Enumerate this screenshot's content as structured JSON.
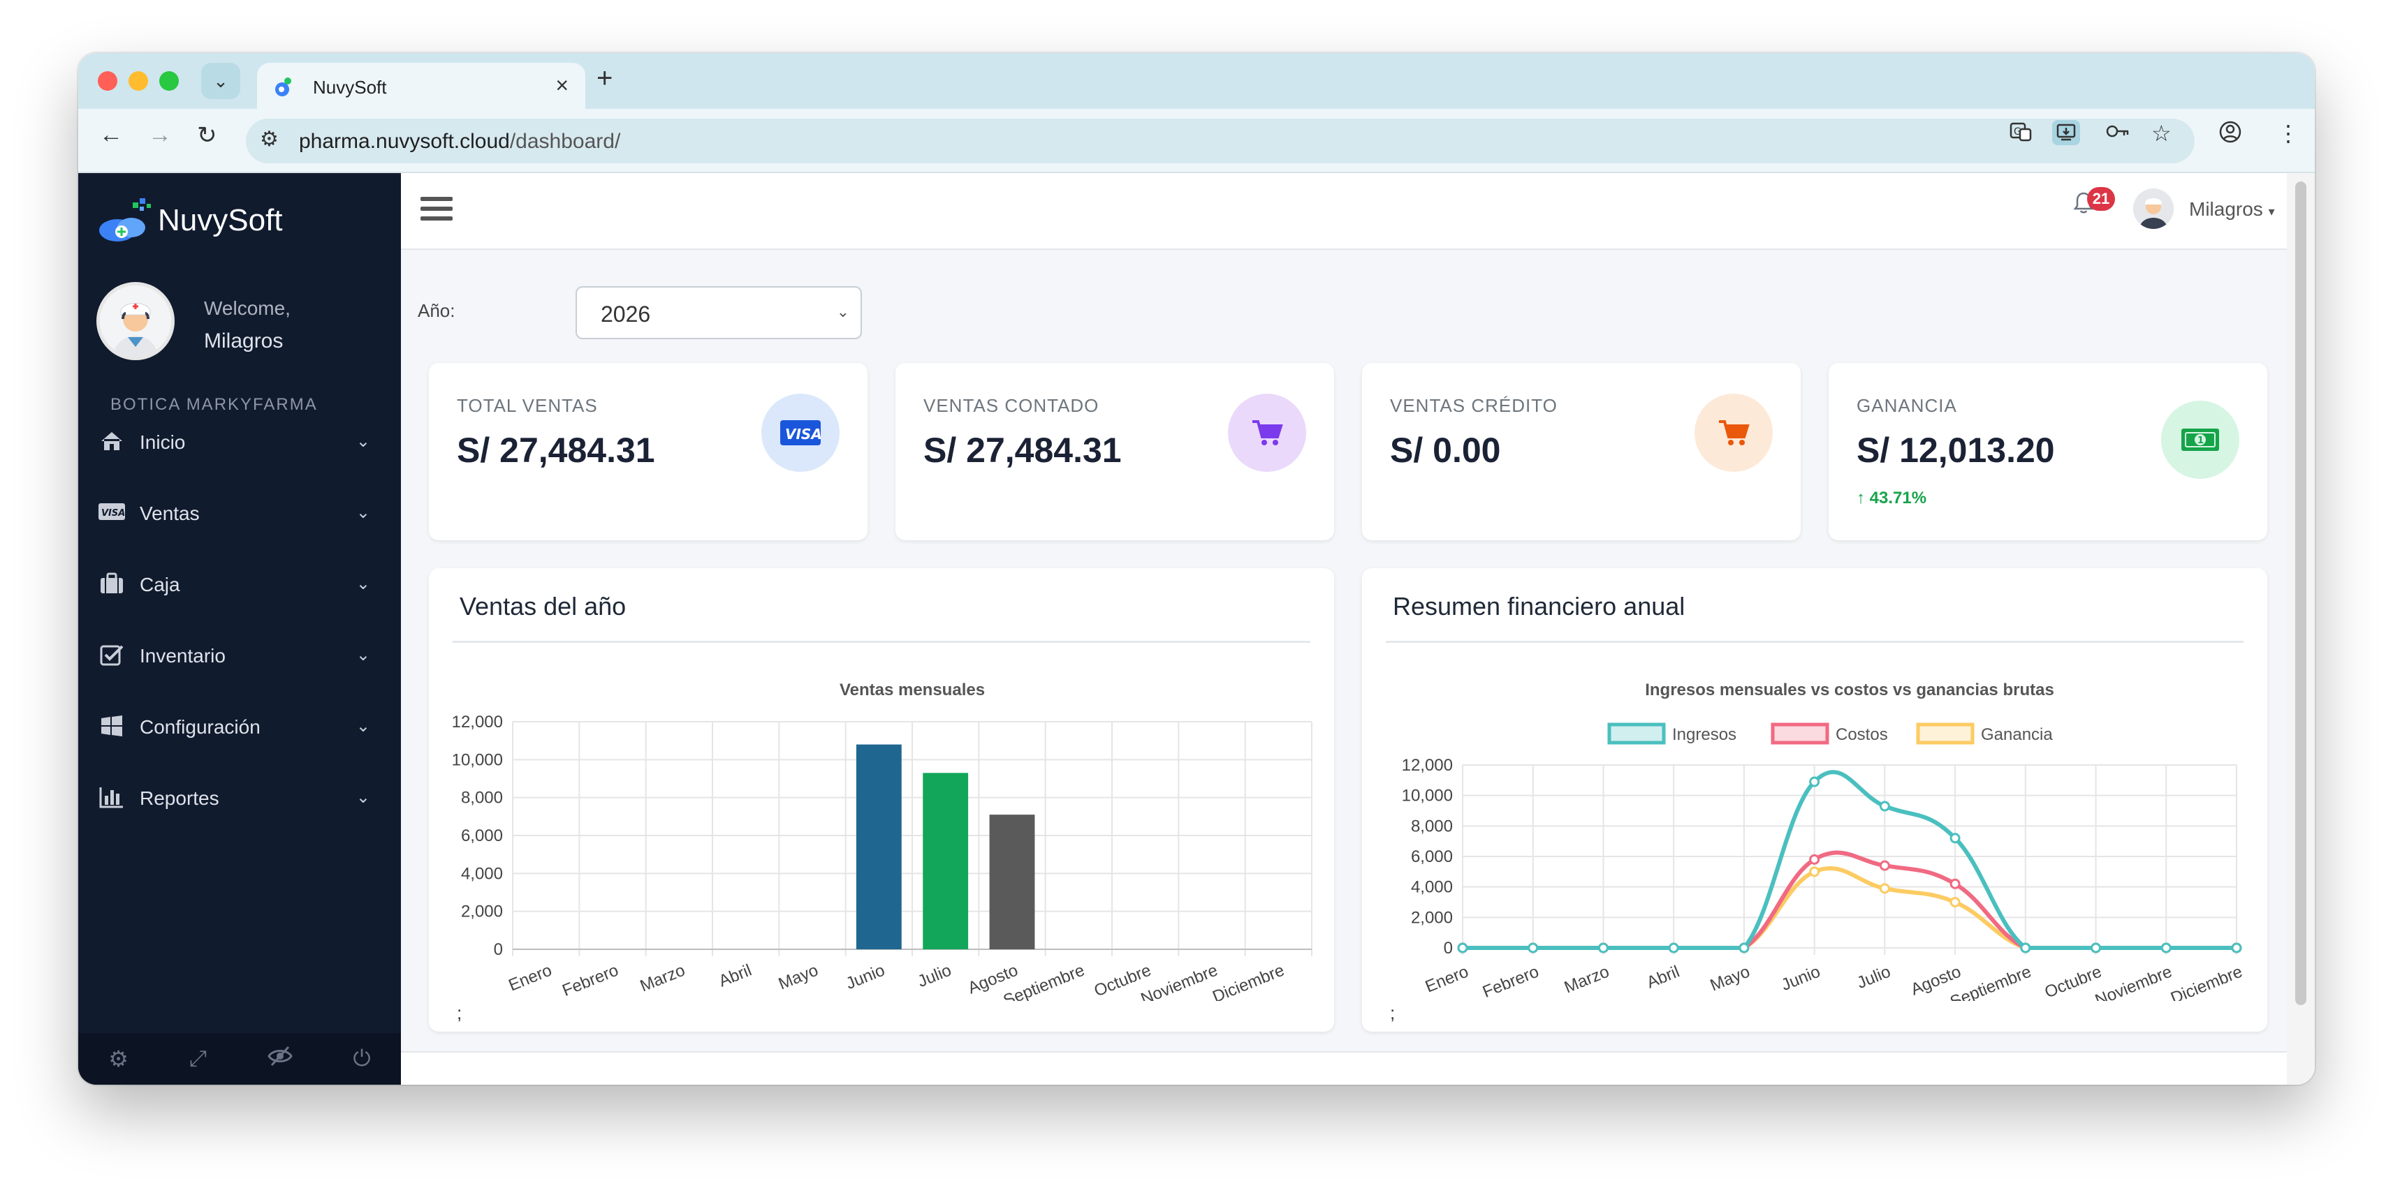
{
  "browser": {
    "tab_title": "NuvySoft",
    "url_host": "pharma.nuvysoft.cloud",
    "url_path": "/dashboard/"
  },
  "sidebar": {
    "brand": "NuvySoft",
    "welcome": "Welcome,",
    "user": "Milagros",
    "store": "BOTICA MARKYFARMA",
    "items": [
      {
        "label": "Inicio",
        "icon": "home-icon"
      },
      {
        "label": "Ventas",
        "icon": "visa-icon"
      },
      {
        "label": "Caja",
        "icon": "briefcase-icon"
      },
      {
        "label": "Inventario",
        "icon": "checkbox-icon"
      },
      {
        "label": "Configuración",
        "icon": "windows-icon"
      },
      {
        "label": "Reportes",
        "icon": "bar-chart-icon"
      }
    ]
  },
  "topbar": {
    "notifications": "21",
    "user": "Milagros"
  },
  "filter": {
    "label": "Año:",
    "year": "2026"
  },
  "kpis": [
    {
      "label": "TOTAL VENTAS",
      "value": "S/ 27,484.31",
      "icon": "visa-icon",
      "bg": "#dbe8fb",
      "fg": "#1a56db"
    },
    {
      "label": "VENTAS CONTADO",
      "value": "S/ 27,484.31",
      "icon": "cart-icon",
      "bg": "#ead9fb",
      "fg": "#7c3aed"
    },
    {
      "label": "VENTAS CRÉDITO",
      "value": "S/ 0.00",
      "icon": "cart-icon",
      "bg": "#fde9d7",
      "fg": "#ea580c"
    },
    {
      "label": "GANANCIA",
      "value": "S/ 12,013.20",
      "icon": "money-icon",
      "bg": "#d6f5e3",
      "fg": "#16a34a",
      "change": "43.71%"
    }
  ],
  "cards": {
    "left_title": "Ventas del año",
    "right_title": "Resumen financiero anual",
    "semicolon": ";"
  },
  "chart_data": [
    {
      "type": "bar",
      "title": "Ventas mensuales",
      "categories": [
        "Enero",
        "Febrero",
        "Marzo",
        "Abril",
        "Mayo",
        "Junio",
        "Julio",
        "Agosto",
        "Septiembre",
        "Octubre",
        "Noviembre",
        "Diciembre"
      ],
      "values": [
        0,
        0,
        0,
        0,
        0,
        10800,
        9300,
        7100,
        0,
        0,
        0,
        0
      ],
      "colors": [
        "#1f6691",
        "#12a65a",
        "#5a5a5a"
      ],
      "ylim": [
        0,
        12000
      ],
      "yticks": [
        "0",
        "2,000",
        "4,000",
        "6,000",
        "8,000",
        "10,000",
        "12,000"
      ]
    },
    {
      "type": "line",
      "title": "Ingresos mensuales vs costos vs ganancias brutas",
      "categories": [
        "Enero",
        "Febrero",
        "Marzo",
        "Abril",
        "Mayo",
        "Junio",
        "Julio",
        "Agosto",
        "Septiembre",
        "Octubre",
        "Noviembre",
        "Diciembre"
      ],
      "series": [
        {
          "name": "Ingresos",
          "color": "#4bbfbf",
          "values": [
            0,
            0,
            0,
            0,
            0,
            10900,
            9300,
            7200,
            0,
            0,
            0,
            0
          ]
        },
        {
          "name": "Costos",
          "color": "#f06a82",
          "values": [
            0,
            0,
            0,
            0,
            0,
            5800,
            5400,
            4200,
            0,
            0,
            0,
            0
          ]
        },
        {
          "name": "Ganancia",
          "color": "#fccb62",
          "values": [
            0,
            0,
            0,
            0,
            0,
            5000,
            3900,
            3000,
            0,
            0,
            0,
            0
          ]
        }
      ],
      "ylim": [
        0,
        12000
      ],
      "yticks": [
        "0",
        "2,000",
        "4,000",
        "6,000",
        "8,000",
        "10,000",
        "12,000"
      ],
      "legend": "top"
    }
  ]
}
